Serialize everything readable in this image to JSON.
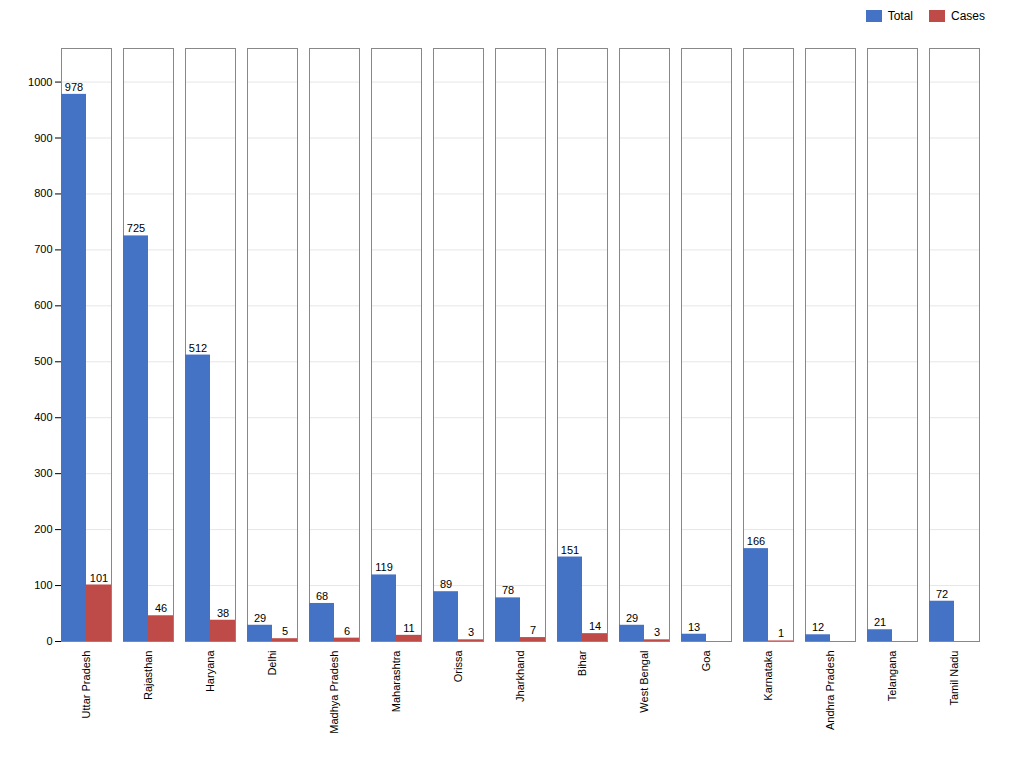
{
  "chart_data": {
    "type": "bar",
    "categories": [
      "Uttar Pradesh",
      "Rajasthan",
      "Haryana",
      "Delhi",
      "Madhya Pradesh",
      "Maharashtra",
      "Orissa",
      "Jharkhand",
      "Bihar",
      "West Bengal",
      "Goa",
      "Karnataka",
      "Andhra Pradesh",
      "Telangana",
      "Tamil Nadu"
    ],
    "series": [
      {
        "name": "Total",
        "color": "#4472C4",
        "values": [
          978,
          725,
          512,
          29,
          68,
          119,
          89,
          78,
          151,
          29,
          13,
          166,
          12,
          21,
          72
        ]
      },
      {
        "name": "Cases",
        "color": "#BE4B48",
        "values": [
          101,
          46,
          38,
          5,
          6,
          11,
          3,
          7,
          14,
          3,
          0,
          1,
          0,
          0,
          0
        ],
        "value_labels": [
          "101",
          "46",
          "38",
          "5",
          "6",
          "11",
          "3",
          "7",
          "14",
          "3",
          null,
          "1",
          null,
          null,
          null
        ]
      }
    ],
    "ylim": [
      0,
      1060
    ],
    "yticks": [
      0,
      100,
      200,
      300,
      400,
      500,
      600,
      700,
      800,
      900,
      1000
    ],
    "grid": true,
    "legend": "upper right",
    "data_labels": true
  }
}
